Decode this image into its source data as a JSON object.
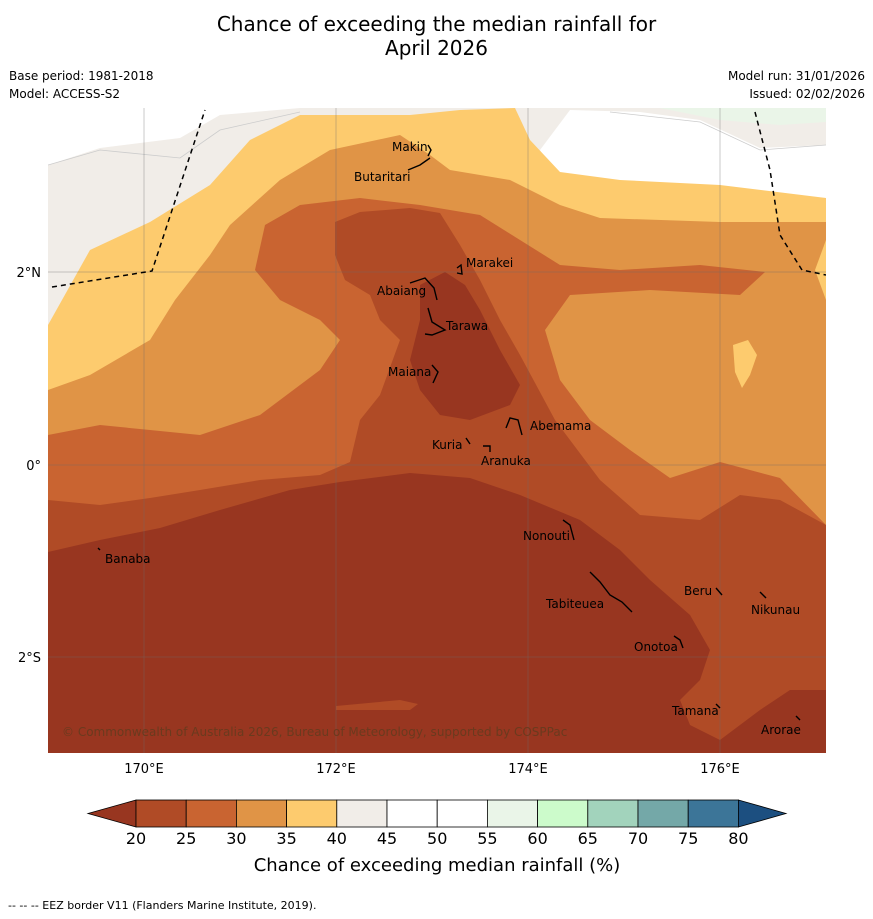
{
  "title_line1": "Chance of exceeding the median rainfall for",
  "title_line2": "April 2026",
  "base_period": "Base period: 1981-2018",
  "model": "Model: ACCESS-S2",
  "model_run": "Model run: 31/01/2026",
  "issued": "Issued: 02/02/2026",
  "copyright": "© Commonwealth of Australia 2026, Bureau of Meteorology, supported by COSPPac",
  "footnote": "--  --  -- EEZ border V11 (Flanders Marine Institute, 2019).",
  "axes": {
    "x_ticks": [
      "170°E",
      "172°E",
      "174°E",
      "176°E"
    ],
    "y_ticks": [
      "2°N",
      "0°",
      "2°S"
    ]
  },
  "islands": [
    {
      "name": "Makin"
    },
    {
      "name": "Butaritari"
    },
    {
      "name": "Marakei"
    },
    {
      "name": "Abaiang"
    },
    {
      "name": "Tarawa"
    },
    {
      "name": "Maiana"
    },
    {
      "name": "Abemama"
    },
    {
      "name": "Kuria"
    },
    {
      "name": "Aranuka"
    },
    {
      "name": "Nonouti"
    },
    {
      "name": "Banaba"
    },
    {
      "name": "Tabiteuea"
    },
    {
      "name": "Beru"
    },
    {
      "name": "Nikunau"
    },
    {
      "name": "Onotoa"
    },
    {
      "name": "Tamana"
    },
    {
      "name": "Arorae"
    }
  ],
  "colorbar": {
    "label": "Chance of exceeding median rainfall (%)",
    "ticks": [
      "20",
      "25",
      "30",
      "35",
      "40",
      "45",
      "50",
      "55",
      "60",
      "65",
      "70",
      "75",
      "80"
    ],
    "colors": [
      "#983620",
      "#b04b26",
      "#c96431",
      "#e09446",
      "#fdcb6e",
      "#f1ede8",
      "#ffffff",
      "#ffffff",
      "#eaf5e8",
      "#ccfbcb",
      "#a2d3bc",
      "#74a8a8",
      "#3c7598",
      "#1c4f80"
    ]
  }
}
